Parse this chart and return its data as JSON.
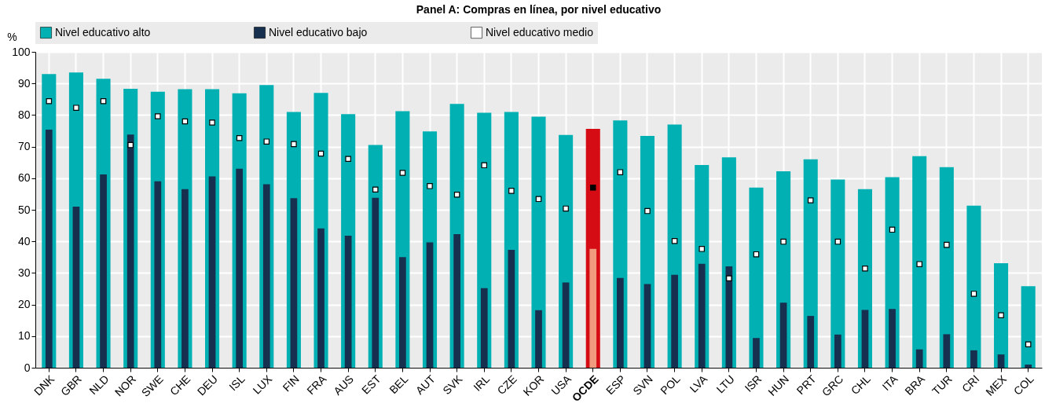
{
  "chart_data": {
    "type": "bar",
    "title": "Panel A: Compras en línea, por nivel educativo",
    "ylabel": "%",
    "categories": [
      "DNK",
      "GBR",
      "NLD",
      "NOR",
      "SWE",
      "CHE",
      "DEU",
      "ISL",
      "LUX",
      "FIN",
      "FRA",
      "AUS",
      "EST",
      "BEL",
      "AUT",
      "SVK",
      "IRL",
      "CZE",
      "KOR",
      "USA",
      "OCDE",
      "ESP",
      "SVN",
      "POL",
      "LVA",
      "LTU",
      "ISR",
      "HUN",
      "PRT",
      "GRC",
      "CHL",
      "ITA",
      "BRA",
      "TUR",
      "CRI",
      "MEX",
      "COL"
    ],
    "series": [
      {
        "name": "Nivel educativo alto",
        "color": "#00b0b2",
        "colors": [
          "#00b0b2",
          "#00b0b2",
          "#00b0b2",
          "#00b0b2",
          "#00b0b2",
          "#00b0b2",
          "#00b0b2",
          "#00b0b2",
          "#00b0b2",
          "#00b0b2",
          "#00b0b2",
          "#00b0b2",
          "#00b0b2",
          "#00b0b2",
          "#00b0b2",
          "#00b0b2",
          "#00b0b2",
          "#00b0b2",
          "#00b0b2",
          "#00b0b2",
          "#d50c13",
          "#00b0b2",
          "#00b0b2",
          "#00b0b2",
          "#00b0b2",
          "#00b0b2",
          "#00b0b2",
          "#00b0b2",
          "#00b0b2",
          "#00b0b2",
          "#00b0b2",
          "#00b0b2",
          "#00b0b2",
          "#00b0b2",
          "#00b0b2",
          "#00b0b2",
          "#00b0b2"
        ],
        "values": [
          93,
          93.5,
          91.5,
          88.3,
          87.4,
          88.2,
          88.2,
          86.9,
          89.5,
          81,
          87,
          80.3,
          70.5,
          81.2,
          74.8,
          83.5,
          80.7,
          81,
          79.5,
          73.7,
          75.6,
          78.3,
          73.4,
          77,
          64.2,
          66.6,
          57,
          62.2,
          66,
          59.6,
          56.5,
          60.3,
          67,
          63.5,
          51.3,
          33.1,
          25.8
        ]
      },
      {
        "name": "Nivel educativo bajo",
        "color": "#17304f",
        "colors": [
          "#17304f",
          "#17304f",
          "#17304f",
          "#17304f",
          "#17304f",
          "#17304f",
          "#17304f",
          "#17304f",
          "#17304f",
          "#17304f",
          "#17304f",
          "#17304f",
          "#17304f",
          "#17304f",
          "#17304f",
          "#17304f",
          "#17304f",
          "#17304f",
          "#17304f",
          "#17304f",
          "#f09a80",
          "#17304f",
          "#17304f",
          "#17304f",
          "#17304f",
          "#17304f",
          "#17304f",
          "#17304f",
          "#17304f",
          "#17304f",
          "#17304f",
          "#17304f",
          "#17304f",
          "#17304f",
          "#17304f",
          "#17304f",
          "#17304f"
        ],
        "values": [
          75.4,
          51,
          61.2,
          73.8,
          59,
          56.5,
          60.6,
          63,
          58.1,
          53.7,
          44.1,
          41.8,
          53.8,
          35,
          39.7,
          42.3,
          25.2,
          37.3,
          18.2,
          27,
          37.6,
          28.4,
          26.5,
          29.4,
          32.9,
          32.1,
          9.4,
          20.6,
          16.4,
          10.5,
          18.3,
          18.6,
          5.8,
          10.6,
          5.5,
          4.2,
          1
        ]
      },
      {
        "name": "Nivel educativo medio",
        "type": "scatter",
        "color": "#ffffff",
        "colors": [
          "#ffffff",
          "#ffffff",
          "#ffffff",
          "#ffffff",
          "#ffffff",
          "#ffffff",
          "#ffffff",
          "#ffffff",
          "#ffffff",
          "#ffffff",
          "#ffffff",
          "#ffffff",
          "#ffffff",
          "#ffffff",
          "#ffffff",
          "#ffffff",
          "#ffffff",
          "#ffffff",
          "#ffffff",
          "#ffffff",
          "#000000",
          "#ffffff",
          "#ffffff",
          "#ffffff",
          "#ffffff",
          "#ffffff",
          "#ffffff",
          "#ffffff",
          "#ffffff",
          "#ffffff",
          "#ffffff",
          "#ffffff",
          "#ffffff",
          "#ffffff",
          "#ffffff",
          "#ffffff",
          "#ffffff"
        ],
        "values": [
          84.4,
          82.3,
          84.4,
          70.5,
          79.6,
          78,
          77.6,
          72.7,
          71.6,
          70.8,
          67.8,
          66.1,
          56.4,
          61.7,
          57.5,
          54.8,
          64.1,
          56,
          53.4,
          50.4,
          57,
          61.9,
          49.6,
          40.1,
          37.6,
          28.3,
          35.9,
          39.9,
          53,
          39.9,
          31.4,
          43.7,
          32.8,
          38.9,
          23.4,
          16.6,
          7.4
        ]
      }
    ],
    "ylim": [
      0,
      100
    ],
    "yticks": [
      0,
      10,
      20,
      30,
      40,
      50,
      60,
      70,
      80,
      90,
      100
    ],
    "grid": true,
    "legend": "top",
    "marker": "square"
  }
}
